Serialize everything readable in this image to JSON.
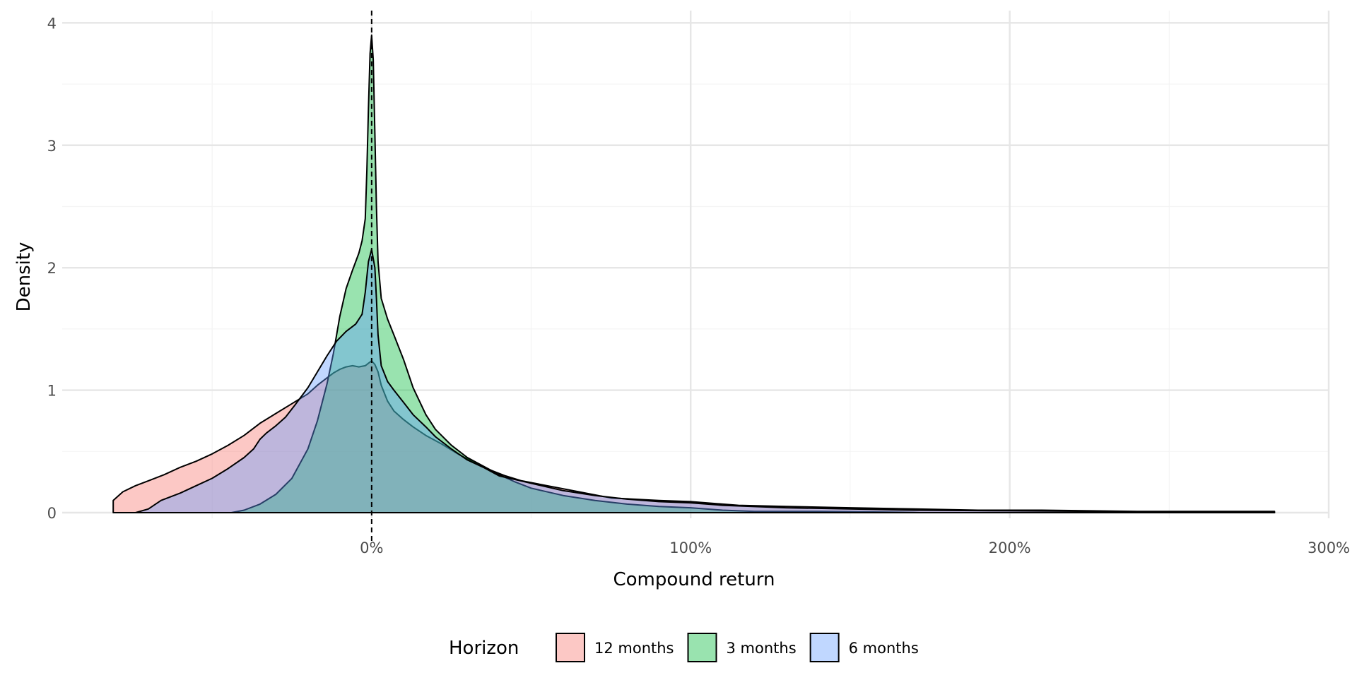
{
  "chart_data": {
    "type": "area",
    "title": "",
    "xlabel": "Compound return",
    "ylabel": "Density",
    "xlim": [
      -0.97,
      3.0
    ],
    "ylim": [
      0,
      4.1
    ],
    "x_ticks": [
      0,
      1,
      2,
      3
    ],
    "x_tick_labels": [
      "0%",
      "100%",
      "200%",
      "300%"
    ],
    "y_ticks": [
      0,
      1,
      2,
      3,
      4
    ],
    "y_tick_labels": [
      "0",
      "1",
      "2",
      "3",
      "4"
    ],
    "grid": true,
    "reference_line": {
      "x": 0,
      "style": "dashed"
    },
    "legend": {
      "title": "Horizon",
      "position": "bottom"
    },
    "series": [
      {
        "name": "12 months",
        "color": "#F8766D",
        "points": [
          [
            -0.81,
            0.1
          ],
          [
            -0.78,
            0.17
          ],
          [
            -0.74,
            0.22
          ],
          [
            -0.7,
            0.26
          ],
          [
            -0.65,
            0.31
          ],
          [
            -0.6,
            0.37
          ],
          [
            -0.55,
            0.42
          ],
          [
            -0.5,
            0.48
          ],
          [
            -0.45,
            0.55
          ],
          [
            -0.4,
            0.63
          ],
          [
            -0.35,
            0.73
          ],
          [
            -0.3,
            0.81
          ],
          [
            -0.25,
            0.89
          ],
          [
            -0.2,
            0.97
          ],
          [
            -0.17,
            1.04
          ],
          [
            -0.14,
            1.1
          ],
          [
            -0.12,
            1.14
          ],
          [
            -0.1,
            1.17
          ],
          [
            -0.08,
            1.19
          ],
          [
            -0.06,
            1.2
          ],
          [
            -0.04,
            1.19
          ],
          [
            -0.02,
            1.2
          ],
          [
            -0.01,
            1.22
          ],
          [
            0,
            1.24
          ],
          [
            0.01,
            1.21
          ],
          [
            0.02,
            1.15
          ],
          [
            0.03,
            1.04
          ],
          [
            0.05,
            0.91
          ],
          [
            0.07,
            0.83
          ],
          [
            0.1,
            0.76
          ],
          [
            0.13,
            0.7
          ],
          [
            0.17,
            0.63
          ],
          [
            0.22,
            0.56
          ],
          [
            0.27,
            0.48
          ],
          [
            0.32,
            0.41
          ],
          [
            0.37,
            0.35
          ],
          [
            0.42,
            0.3
          ],
          [
            0.47,
            0.26
          ],
          [
            0.55,
            0.22
          ],
          [
            0.65,
            0.17
          ],
          [
            0.75,
            0.12
          ],
          [
            0.9,
            0.1
          ],
          [
            1.0,
            0.09
          ],
          [
            1.15,
            0.06
          ],
          [
            1.3,
            0.05
          ],
          [
            1.5,
            0.04
          ],
          [
            1.7,
            0.03
          ],
          [
            1.9,
            0.02
          ],
          [
            2.1,
            0.02
          ],
          [
            2.4,
            0.01
          ],
          [
            2.7,
            0.01
          ],
          [
            2.83,
            0.01
          ],
          [
            2.83,
            0
          ]
        ]
      },
      {
        "name": "3 months",
        "color": "#00BA38",
        "points": [
          [
            -0.44,
            0
          ],
          [
            -0.4,
            0.02
          ],
          [
            -0.35,
            0.07
          ],
          [
            -0.3,
            0.15
          ],
          [
            -0.25,
            0.28
          ],
          [
            -0.2,
            0.52
          ],
          [
            -0.17,
            0.75
          ],
          [
            -0.14,
            1.05
          ],
          [
            -0.12,
            1.3
          ],
          [
            -0.1,
            1.6
          ],
          [
            -0.08,
            1.83
          ],
          [
            -0.06,
            1.98
          ],
          [
            -0.04,
            2.12
          ],
          [
            -0.03,
            2.22
          ],
          [
            -0.02,
            2.4
          ],
          [
            -0.015,
            2.8
          ],
          [
            -0.01,
            3.3
          ],
          [
            -0.005,
            3.75
          ],
          [
            0,
            3.9
          ],
          [
            0.005,
            3.7
          ],
          [
            0.01,
            3.1
          ],
          [
            0.015,
            2.5
          ],
          [
            0.02,
            2.05
          ],
          [
            0.03,
            1.75
          ],
          [
            0.05,
            1.58
          ],
          [
            0.07,
            1.45
          ],
          [
            0.1,
            1.25
          ],
          [
            0.13,
            1.02
          ],
          [
            0.17,
            0.8
          ],
          [
            0.2,
            0.68
          ],
          [
            0.25,
            0.55
          ],
          [
            0.3,
            0.45
          ],
          [
            0.35,
            0.38
          ],
          [
            0.4,
            0.31
          ],
          [
            0.45,
            0.25
          ],
          [
            0.5,
            0.2
          ],
          [
            0.6,
            0.14
          ],
          [
            0.7,
            0.1
          ],
          [
            0.8,
            0.07
          ],
          [
            0.9,
            0.05
          ],
          [
            1.0,
            0.04
          ],
          [
            1.1,
            0.02
          ],
          [
            1.2,
            0.01
          ],
          [
            1.4,
            0.01
          ],
          [
            1.6,
            0.005
          ],
          [
            1.7,
            0.002
          ],
          [
            1.72,
            0
          ]
        ]
      },
      {
        "name": "6 months",
        "color": "#619CFF",
        "points": [
          [
            -0.74,
            0
          ],
          [
            -0.7,
            0.03
          ],
          [
            -0.66,
            0.1
          ],
          [
            -0.6,
            0.16
          ],
          [
            -0.55,
            0.22
          ],
          [
            -0.5,
            0.28
          ],
          [
            -0.45,
            0.36
          ],
          [
            -0.4,
            0.45
          ],
          [
            -0.37,
            0.52
          ],
          [
            -0.35,
            0.6
          ],
          [
            -0.33,
            0.65
          ],
          [
            -0.3,
            0.71
          ],
          [
            -0.27,
            0.78
          ],
          [
            -0.24,
            0.88
          ],
          [
            -0.2,
            1.02
          ],
          [
            -0.17,
            1.15
          ],
          [
            -0.14,
            1.28
          ],
          [
            -0.11,
            1.4
          ],
          [
            -0.08,
            1.48
          ],
          [
            -0.05,
            1.54
          ],
          [
            -0.03,
            1.62
          ],
          [
            -0.02,
            1.8
          ],
          [
            -0.01,
            2.05
          ],
          [
            0,
            2.15
          ],
          [
            0.01,
            2.0
          ],
          [
            0.015,
            1.75
          ],
          [
            0.02,
            1.45
          ],
          [
            0.03,
            1.2
          ],
          [
            0.05,
            1.07
          ],
          [
            0.07,
            1.0
          ],
          [
            0.1,
            0.9
          ],
          [
            0.13,
            0.8
          ],
          [
            0.17,
            0.7
          ],
          [
            0.2,
            0.62
          ],
          [
            0.25,
            0.52
          ],
          [
            0.3,
            0.43
          ],
          [
            0.35,
            0.37
          ],
          [
            0.4,
            0.3
          ],
          [
            0.45,
            0.27
          ],
          [
            0.5,
            0.24
          ],
          [
            0.6,
            0.18
          ],
          [
            0.7,
            0.14
          ],
          [
            0.8,
            0.11
          ],
          [
            0.9,
            0.09
          ],
          [
            1.0,
            0.08
          ],
          [
            1.1,
            0.06
          ],
          [
            1.3,
            0.04
          ],
          [
            1.5,
            0.03
          ],
          [
            1.7,
            0.02
          ],
          [
            2.0,
            0.015
          ],
          [
            2.3,
            0.01
          ],
          [
            2.6,
            0.005
          ],
          [
            2.83,
            0.003
          ],
          [
            2.83,
            0
          ]
        ]
      }
    ]
  }
}
